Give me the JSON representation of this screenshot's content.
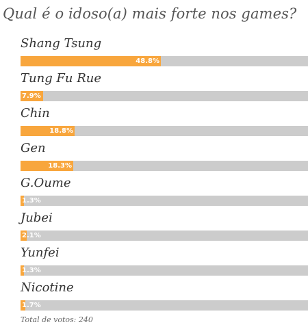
{
  "chart_data": {
    "type": "bar",
    "orientation": "horizontal",
    "title": "Qual é o idoso(a) mais forte nos games?",
    "categories": [
      "Shang Tsung",
      "Tung Fu Rue",
      "Chin",
      "Gen",
      "G.Oume",
      "Jubei",
      "Yunfei",
      "Nicotine"
    ],
    "values": [
      48.8,
      7.9,
      18.8,
      18.3,
      1.3,
      2.1,
      1.3,
      1.7
    ],
    "value_labels": [
      "48.8%",
      "7.9%",
      "18.8%",
      "18.3%",
      "1.3%",
      "2.1%",
      "1.3%",
      "1.7%"
    ],
    "xlim": [
      0,
      100
    ],
    "unit": "%",
    "grid": false,
    "colors": {
      "bar": "#f8a63d",
      "track": "#cccccc",
      "value_text": "#ffffff",
      "title_text": "#555555",
      "label_text": "#333333"
    }
  },
  "footer": {
    "total": "Total de votos: 240"
  }
}
